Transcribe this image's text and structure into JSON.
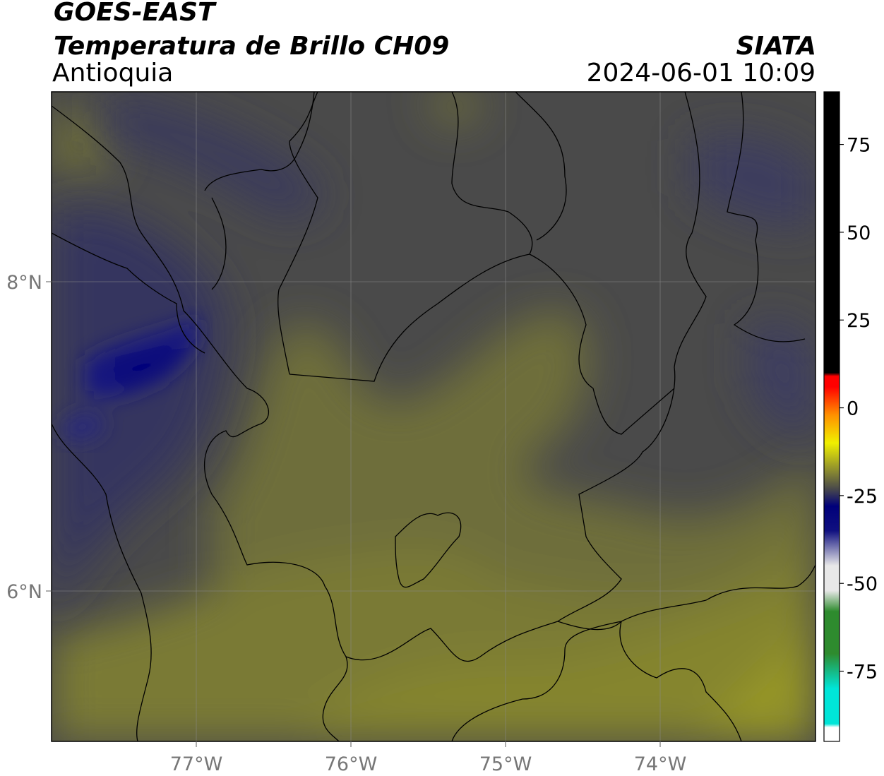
{
  "header": {
    "satellite": "GOES-EAST",
    "product": "Temperatura de Brillo CH09",
    "region": "Antioquia",
    "agency": "SIATA",
    "timestamp": "2024-06-01 10:09"
  },
  "map": {
    "lon_range": [
      -77.95,
      -73.0
    ],
    "lat_range": [
      5.05,
      9.25
    ],
    "lon_ticks": [
      {
        "value": -77,
        "label": "77°W"
      },
      {
        "value": -76,
        "label": "76°W"
      },
      {
        "value": -75,
        "label": "75°W"
      },
      {
        "value": -74,
        "label": "74°W"
      }
    ],
    "lat_ticks": [
      {
        "value": 8,
        "label": "8°N"
      },
      {
        "value": 6,
        "label": "6°N"
      }
    ],
    "grid": true
  },
  "colorbar": {
    "range": [
      -95,
      90
    ],
    "ticks": [
      {
        "value": 75,
        "label": "75"
      },
      {
        "value": 50,
        "label": "50"
      },
      {
        "value": 25,
        "label": "25"
      },
      {
        "value": 0,
        "label": "0"
      },
      {
        "value": -25,
        "label": "-25"
      },
      {
        "value": -50,
        "label": "-50"
      },
      {
        "value": -75,
        "label": "-75"
      }
    ],
    "colors": {
      "cold_white": "#ffffff",
      "cyan": "#00e5d8",
      "green": "#2e8b2e",
      "light_gray": "#e8e8e8",
      "blue": "#101080",
      "navy": "#00007a",
      "dark_gray": "#4a4a4a",
      "olive": "#8a8a30",
      "yellow": "#f0f000",
      "orange": "#ff9000",
      "red": "#ff0000",
      "black": "#000000"
    }
  }
}
